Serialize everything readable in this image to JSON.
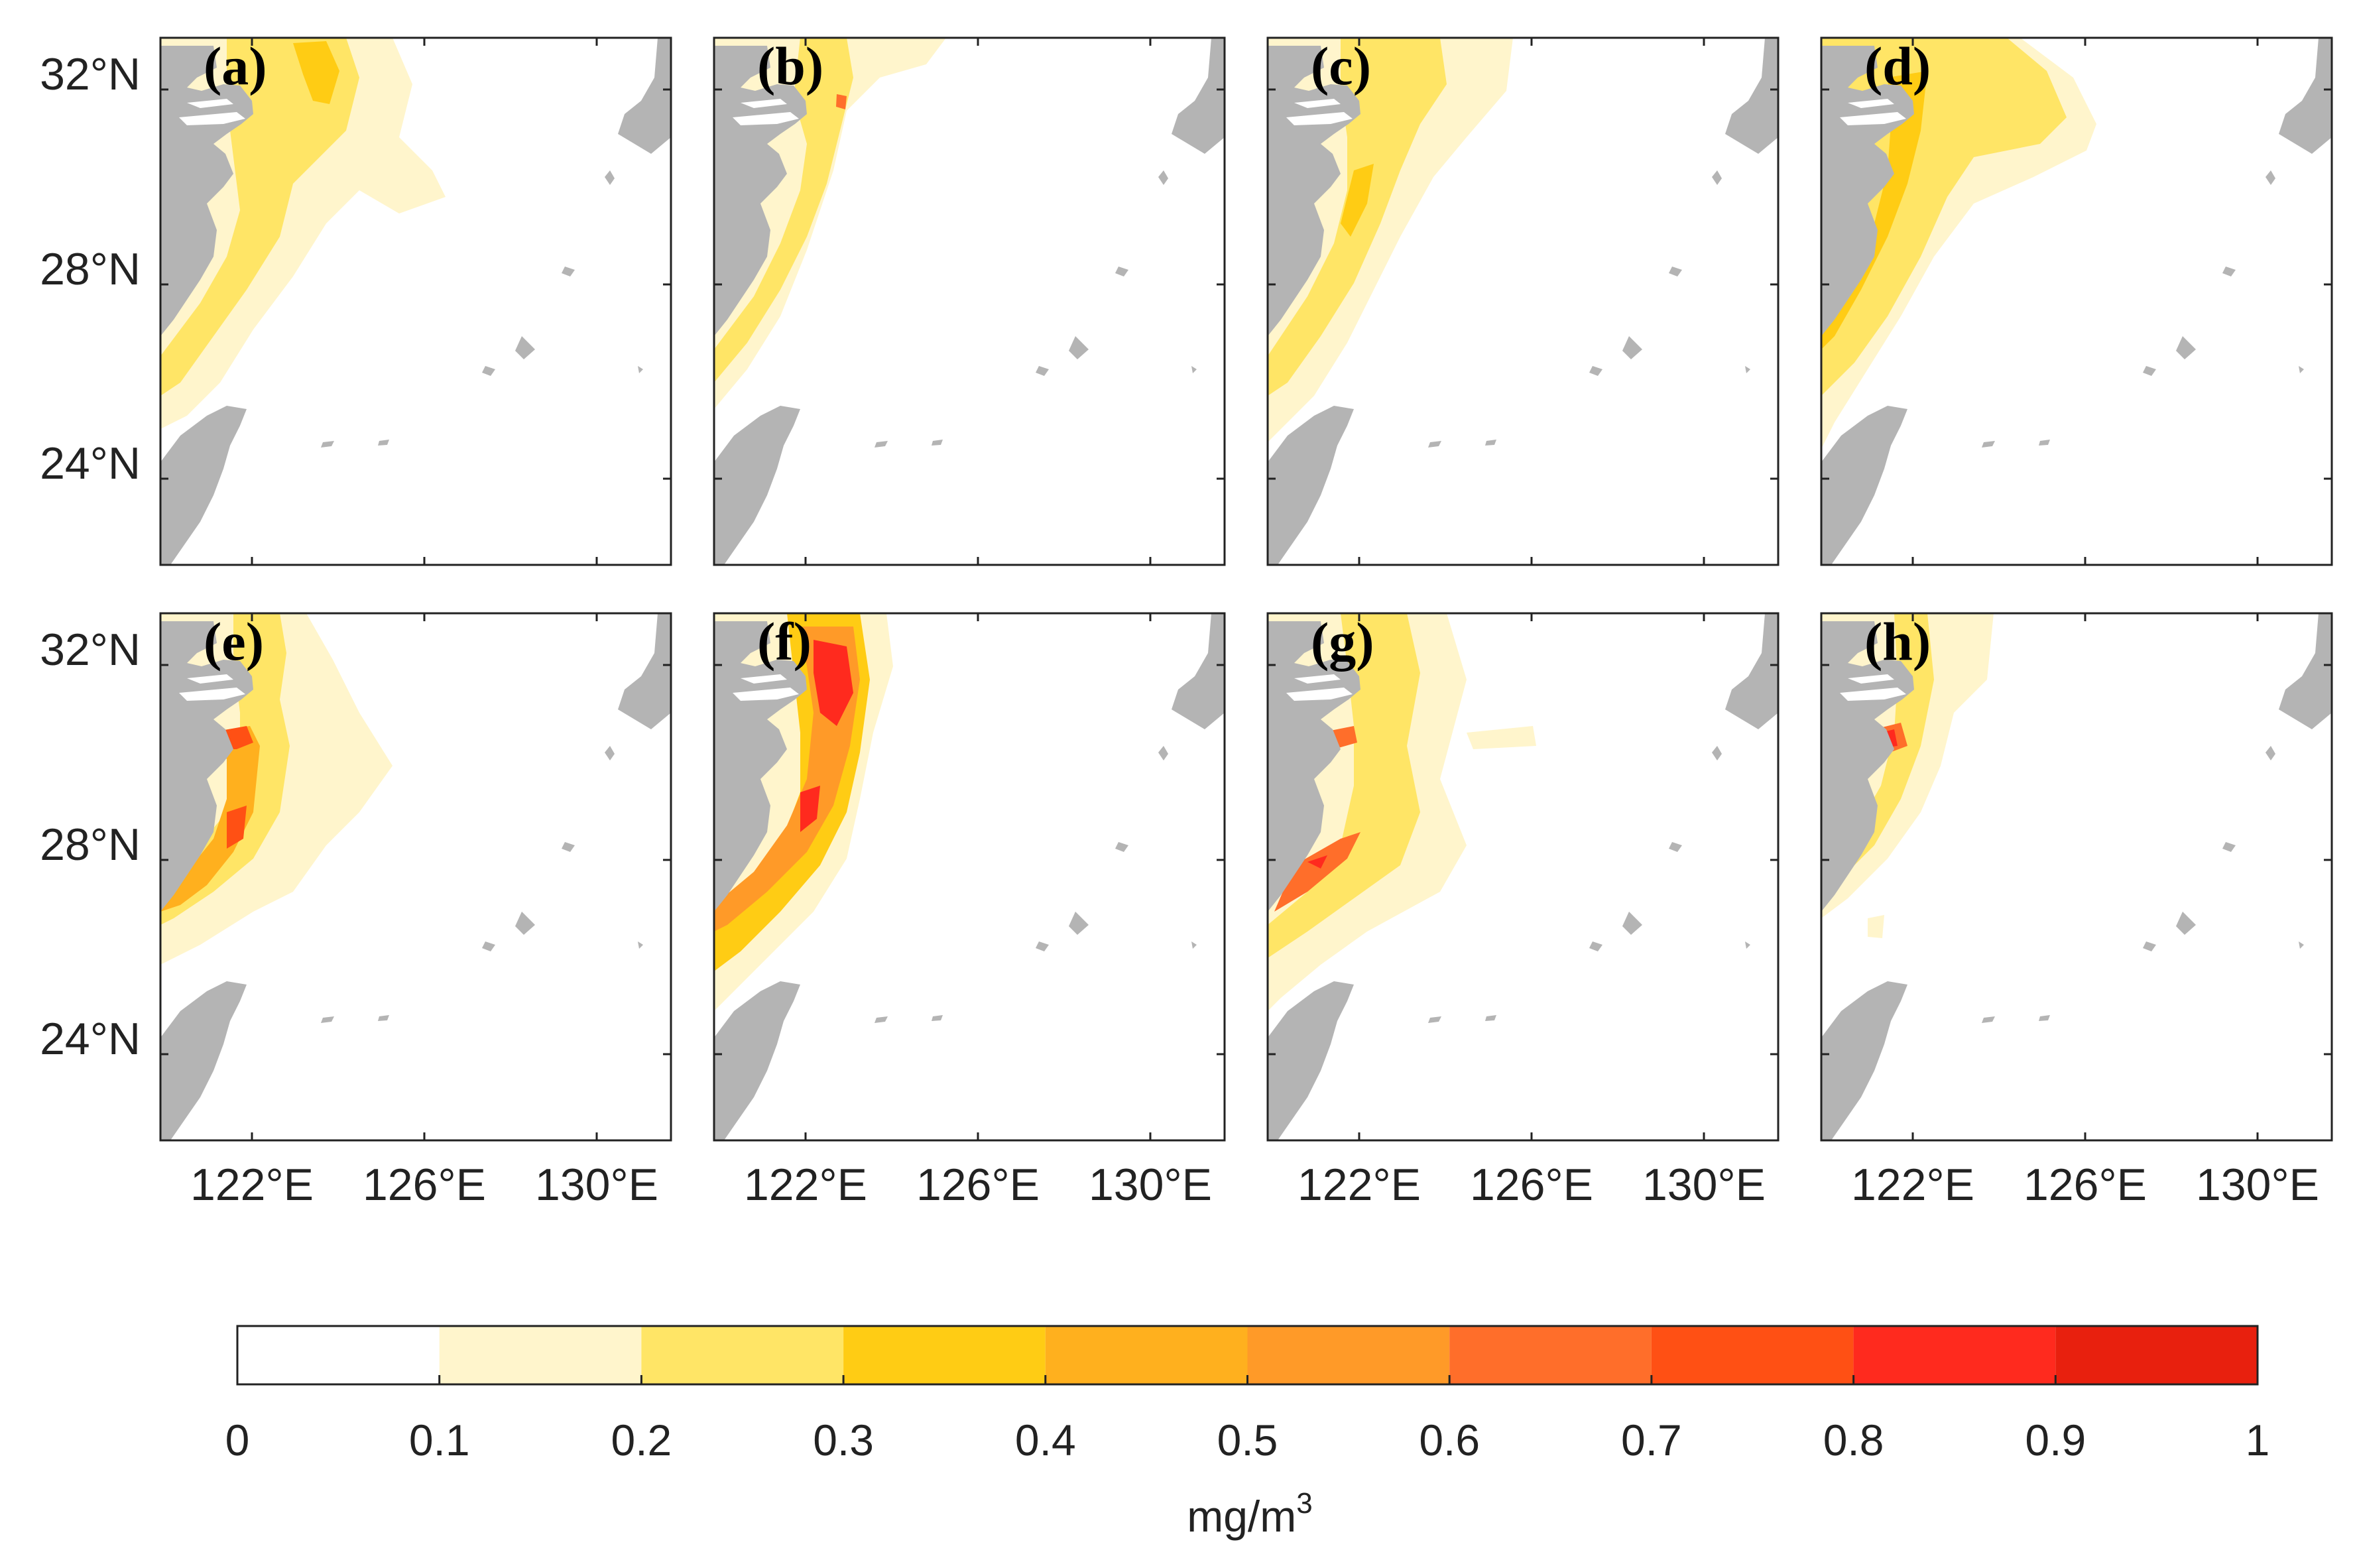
{
  "figure": {
    "panels": [
      {
        "label": "(a)"
      },
      {
        "label": "(b)"
      },
      {
        "label": "(c)"
      },
      {
        "label": "(d)"
      },
      {
        "label": "(e)"
      },
      {
        "label": "(f)"
      },
      {
        "label": "(g)"
      },
      {
        "label": "(h)"
      }
    ],
    "lat_ticks": [
      "32°N",
      "28°N",
      "24°N"
    ],
    "lon_ticks": [
      "122°E",
      "126°E",
      "130°E"
    ],
    "colorbar": {
      "ticks": [
        "0",
        "0.1",
        "0.2",
        "0.3",
        "0.4",
        "0.5",
        "0.6",
        "0.7",
        "0.8",
        "0.9",
        "1"
      ],
      "colors": [
        "#ffffff",
        "#fff5cc",
        "#ffe566",
        "#ffcc14",
        "#ffb01e",
        "#ff9a28",
        "#ff6e2a",
        "#ff5014",
        "#ff2a1e",
        "#e8200e"
      ],
      "unit": "mg/m",
      "unit_sup": "3"
    },
    "land_color": "#b4b4b4"
  }
}
